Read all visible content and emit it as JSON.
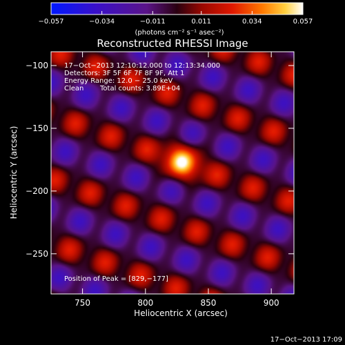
{
  "chart_data": {
    "type": "heatmap",
    "title": "Reconstructed RHESSI Image",
    "xlabel": "Heliocentric X (arcsec)",
    "ylabel": "Heliocentric Y (arcsec)",
    "xlim": [
      725,
      918
    ],
    "ylim": [
      -282,
      -89
    ],
    "x_ticks": [
      750,
      800,
      850,
      900
    ],
    "x_tick_labels": [
      "750",
      "800",
      "850",
      "900"
    ],
    "y_ticks": [
      -100,
      -150,
      -200,
      -250
    ],
    "y_tick_labels": [
      "−100",
      "−150",
      "−200",
      "−250"
    ],
    "colorbar": {
      "min": -0.057,
      "max": 0.057,
      "ticks": [
        -0.057,
        -0.034,
        -0.011,
        0.011,
        0.034,
        0.057
      ],
      "tick_labels": [
        "−0.057",
        "−0.034",
        "−0.011",
        "0.011",
        "0.034",
        "0.057"
      ],
      "units_label": "(photons cm⁻² s⁻¹ asec⁻²)"
    },
    "annotations": [
      "17−Oct−2013 12:10:12.000 to 12:13:34.000",
      "Detectors: 3F 5F 6F 7F 8F 9F, Att 1",
      "Energy Range: 12.0 − 25.0 keV",
      "Clean",
      "Total counts: 3.89E+04"
    ],
    "peak_label": "Position of Peak = [829,−177]",
    "peak": {
      "x": 829,
      "y": -177,
      "value": 0.057
    },
    "pattern": {
      "fringe_angle_deg": 70,
      "fringe_spacing_arcsec": 48,
      "modulation_period_arcsec": 30
    }
  },
  "timestamp": "17−Oct−2013 17:09",
  "colors": {
    "background": "#000000",
    "text": "#ffffff"
  }
}
